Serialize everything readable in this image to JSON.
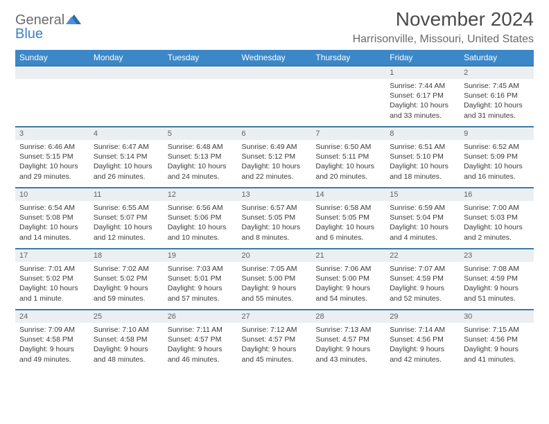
{
  "logo": {
    "text1": "General",
    "text2": "Blue"
  },
  "title": "November 2024",
  "location": "Harrisonville, Missouri, United States",
  "colors": {
    "header_bg": "#3b87c8",
    "header_text": "#ffffff",
    "row_border": "#3b7ba8",
    "daynum_bg": "#eceff1",
    "text": "#333333",
    "logo_gray": "#6b6b6b",
    "logo_blue": "#3b7fc4"
  },
  "weekdays": [
    "Sunday",
    "Monday",
    "Tuesday",
    "Wednesday",
    "Thursday",
    "Friday",
    "Saturday"
  ],
  "weeks": [
    [
      null,
      null,
      null,
      null,
      null,
      {
        "n": "1",
        "sunrise": "7:44 AM",
        "sunset": "6:17 PM",
        "daylight": "10 hours and 33 minutes."
      },
      {
        "n": "2",
        "sunrise": "7:45 AM",
        "sunset": "6:16 PM",
        "daylight": "10 hours and 31 minutes."
      }
    ],
    [
      {
        "n": "3",
        "sunrise": "6:46 AM",
        "sunset": "5:15 PM",
        "daylight": "10 hours and 29 minutes."
      },
      {
        "n": "4",
        "sunrise": "6:47 AM",
        "sunset": "5:14 PM",
        "daylight": "10 hours and 26 minutes."
      },
      {
        "n": "5",
        "sunrise": "6:48 AM",
        "sunset": "5:13 PM",
        "daylight": "10 hours and 24 minutes."
      },
      {
        "n": "6",
        "sunrise": "6:49 AM",
        "sunset": "5:12 PM",
        "daylight": "10 hours and 22 minutes."
      },
      {
        "n": "7",
        "sunrise": "6:50 AM",
        "sunset": "5:11 PM",
        "daylight": "10 hours and 20 minutes."
      },
      {
        "n": "8",
        "sunrise": "6:51 AM",
        "sunset": "5:10 PM",
        "daylight": "10 hours and 18 minutes."
      },
      {
        "n": "9",
        "sunrise": "6:52 AM",
        "sunset": "5:09 PM",
        "daylight": "10 hours and 16 minutes."
      }
    ],
    [
      {
        "n": "10",
        "sunrise": "6:54 AM",
        "sunset": "5:08 PM",
        "daylight": "10 hours and 14 minutes."
      },
      {
        "n": "11",
        "sunrise": "6:55 AM",
        "sunset": "5:07 PM",
        "daylight": "10 hours and 12 minutes."
      },
      {
        "n": "12",
        "sunrise": "6:56 AM",
        "sunset": "5:06 PM",
        "daylight": "10 hours and 10 minutes."
      },
      {
        "n": "13",
        "sunrise": "6:57 AM",
        "sunset": "5:05 PM",
        "daylight": "10 hours and 8 minutes."
      },
      {
        "n": "14",
        "sunrise": "6:58 AM",
        "sunset": "5:05 PM",
        "daylight": "10 hours and 6 minutes."
      },
      {
        "n": "15",
        "sunrise": "6:59 AM",
        "sunset": "5:04 PM",
        "daylight": "10 hours and 4 minutes."
      },
      {
        "n": "16",
        "sunrise": "7:00 AM",
        "sunset": "5:03 PM",
        "daylight": "10 hours and 2 minutes."
      }
    ],
    [
      {
        "n": "17",
        "sunrise": "7:01 AM",
        "sunset": "5:02 PM",
        "daylight": "10 hours and 1 minute."
      },
      {
        "n": "18",
        "sunrise": "7:02 AM",
        "sunset": "5:02 PM",
        "daylight": "9 hours and 59 minutes."
      },
      {
        "n": "19",
        "sunrise": "7:03 AM",
        "sunset": "5:01 PM",
        "daylight": "9 hours and 57 minutes."
      },
      {
        "n": "20",
        "sunrise": "7:05 AM",
        "sunset": "5:00 PM",
        "daylight": "9 hours and 55 minutes."
      },
      {
        "n": "21",
        "sunrise": "7:06 AM",
        "sunset": "5:00 PM",
        "daylight": "9 hours and 54 minutes."
      },
      {
        "n": "22",
        "sunrise": "7:07 AM",
        "sunset": "4:59 PM",
        "daylight": "9 hours and 52 minutes."
      },
      {
        "n": "23",
        "sunrise": "7:08 AM",
        "sunset": "4:59 PM",
        "daylight": "9 hours and 51 minutes."
      }
    ],
    [
      {
        "n": "24",
        "sunrise": "7:09 AM",
        "sunset": "4:58 PM",
        "daylight": "9 hours and 49 minutes."
      },
      {
        "n": "25",
        "sunrise": "7:10 AM",
        "sunset": "4:58 PM",
        "daylight": "9 hours and 48 minutes."
      },
      {
        "n": "26",
        "sunrise": "7:11 AM",
        "sunset": "4:57 PM",
        "daylight": "9 hours and 46 minutes."
      },
      {
        "n": "27",
        "sunrise": "7:12 AM",
        "sunset": "4:57 PM",
        "daylight": "9 hours and 45 minutes."
      },
      {
        "n": "28",
        "sunrise": "7:13 AM",
        "sunset": "4:57 PM",
        "daylight": "9 hours and 43 minutes."
      },
      {
        "n": "29",
        "sunrise": "7:14 AM",
        "sunset": "4:56 PM",
        "daylight": "9 hours and 42 minutes."
      },
      {
        "n": "30",
        "sunrise": "7:15 AM",
        "sunset": "4:56 PM",
        "daylight": "9 hours and 41 minutes."
      }
    ]
  ],
  "labels": {
    "sunrise": "Sunrise:",
    "sunset": "Sunset:",
    "daylight": "Daylight:"
  }
}
